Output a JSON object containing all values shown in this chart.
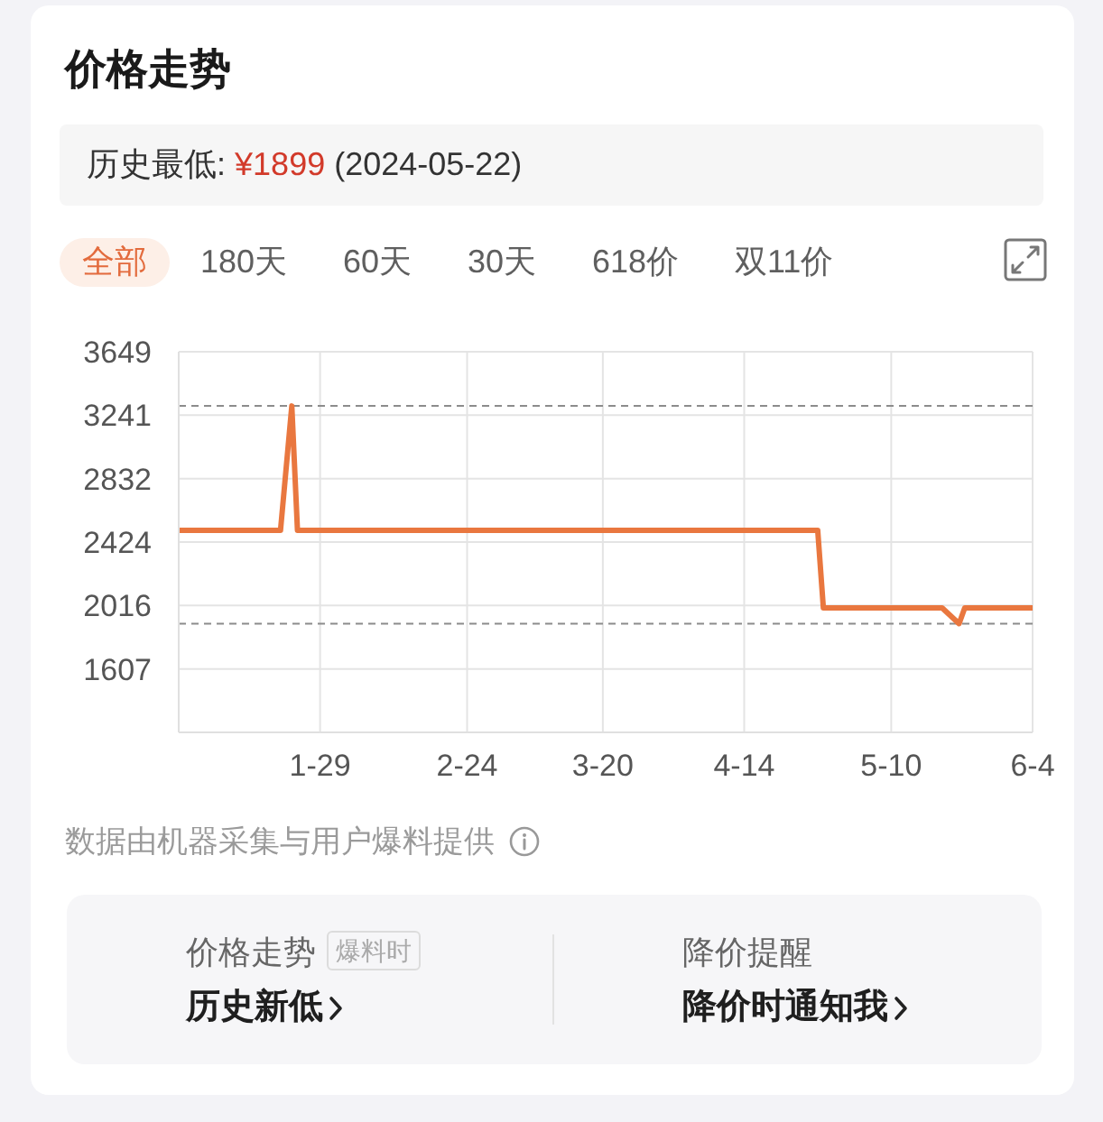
{
  "chart_data": {
    "type": "line",
    "title": "价格走势",
    "annotations": [
      "历史最低:",
      "¥1899",
      "(2024-05-22)",
      "全部",
      "180天",
      "60天",
      "30天",
      "618价",
      "双11价",
      "数据由机器采集与用户爆料提供",
      "价格走势",
      "爆料时",
      "历史新低",
      "降价提醒",
      "降价时通知我"
    ],
    "x": [
      "--01-04",
      "--01-22",
      "--01-24",
      "--01-25",
      "--04-27",
      "--04-28",
      "--05-19",
      "--05-22",
      "--05-23",
      "--06-04"
    ],
    "values": [
      2500,
      2500,
      3300,
      2500,
      2500,
      2000,
      2000,
      1899,
      2000,
      2000
    ],
    "color": "#e9773f",
    "xlim": [
      "--01-04",
      "--06-04"
    ],
    "xticks": [
      {
        "value": "--01-29",
        "label": "1-29"
      },
      {
        "value": "--02-24",
        "label": "2-24"
      },
      {
        "value": "--03-20",
        "label": "3-20"
      },
      {
        "value": "--04-14",
        "label": "4-14"
      },
      {
        "value": "--05-10",
        "label": "5-10"
      },
      {
        "value": "--06-04",
        "label": "6-4"
      }
    ],
    "ylim": [
      1199,
      3649
    ],
    "yticks": [
      1607,
      2016,
      2424,
      2832,
      3241,
      3649
    ],
    "grid": true,
    "marker": "none",
    "line_style": "solid",
    "ref_lines": [
      {
        "axis": "y",
        "value": 3300,
        "color": "#8c8c8c",
        "line_style": "dashed"
      },
      {
        "axis": "y",
        "value": 1899,
        "color": "#8c8c8c",
        "line_style": "dashed"
      }
    ]
  }
}
